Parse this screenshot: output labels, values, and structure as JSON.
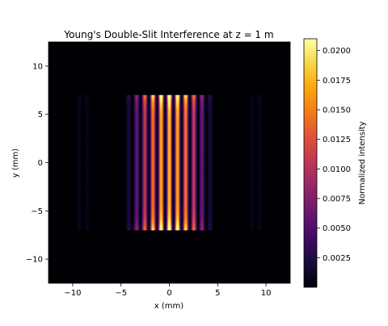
{
  "chart_data": {
    "type": "heatmap",
    "title": "Young's Double-Slit Interference at z = 1 m",
    "xlabel": "x (mm)",
    "ylabel": "y (mm)",
    "xlim": [
      -12.5,
      12.5
    ],
    "ylim": [
      -12.5,
      12.5
    ],
    "x_ticks": [
      -10,
      -5,
      0,
      5,
      10
    ],
    "y_ticks": [
      -10,
      -5,
      0,
      5,
      10
    ],
    "x_tick_labels": [
      "−10",
      "−5",
      "0",
      "5",
      "10"
    ],
    "y_tick_labels": [
      "−10",
      "−5",
      "0",
      "5",
      "10"
    ],
    "colormap": "inferno",
    "colorbar": {
      "label": "Normalized intensity",
      "range": [
        0,
        0.021
      ],
      "ticks": [
        0.0025,
        0.005,
        0.0075,
        0.01,
        0.0125,
        0.015,
        0.0175,
        0.02
      ],
      "tick_labels": [
        "0.0025",
        "0.0050",
        "0.0075",
        "0.0100",
        "0.0125",
        "0.0150",
        "0.0175",
        "0.0200"
      ]
    },
    "pattern": {
      "illuminated_y_range": [
        -7,
        7
      ],
      "fringe_period_x": 0.85,
      "envelope_half_width_x": 5.0,
      "secondary_lobe_x": [
        7.5,
        10.5
      ],
      "peak_intensity": 0.021
    },
    "grid": false
  }
}
